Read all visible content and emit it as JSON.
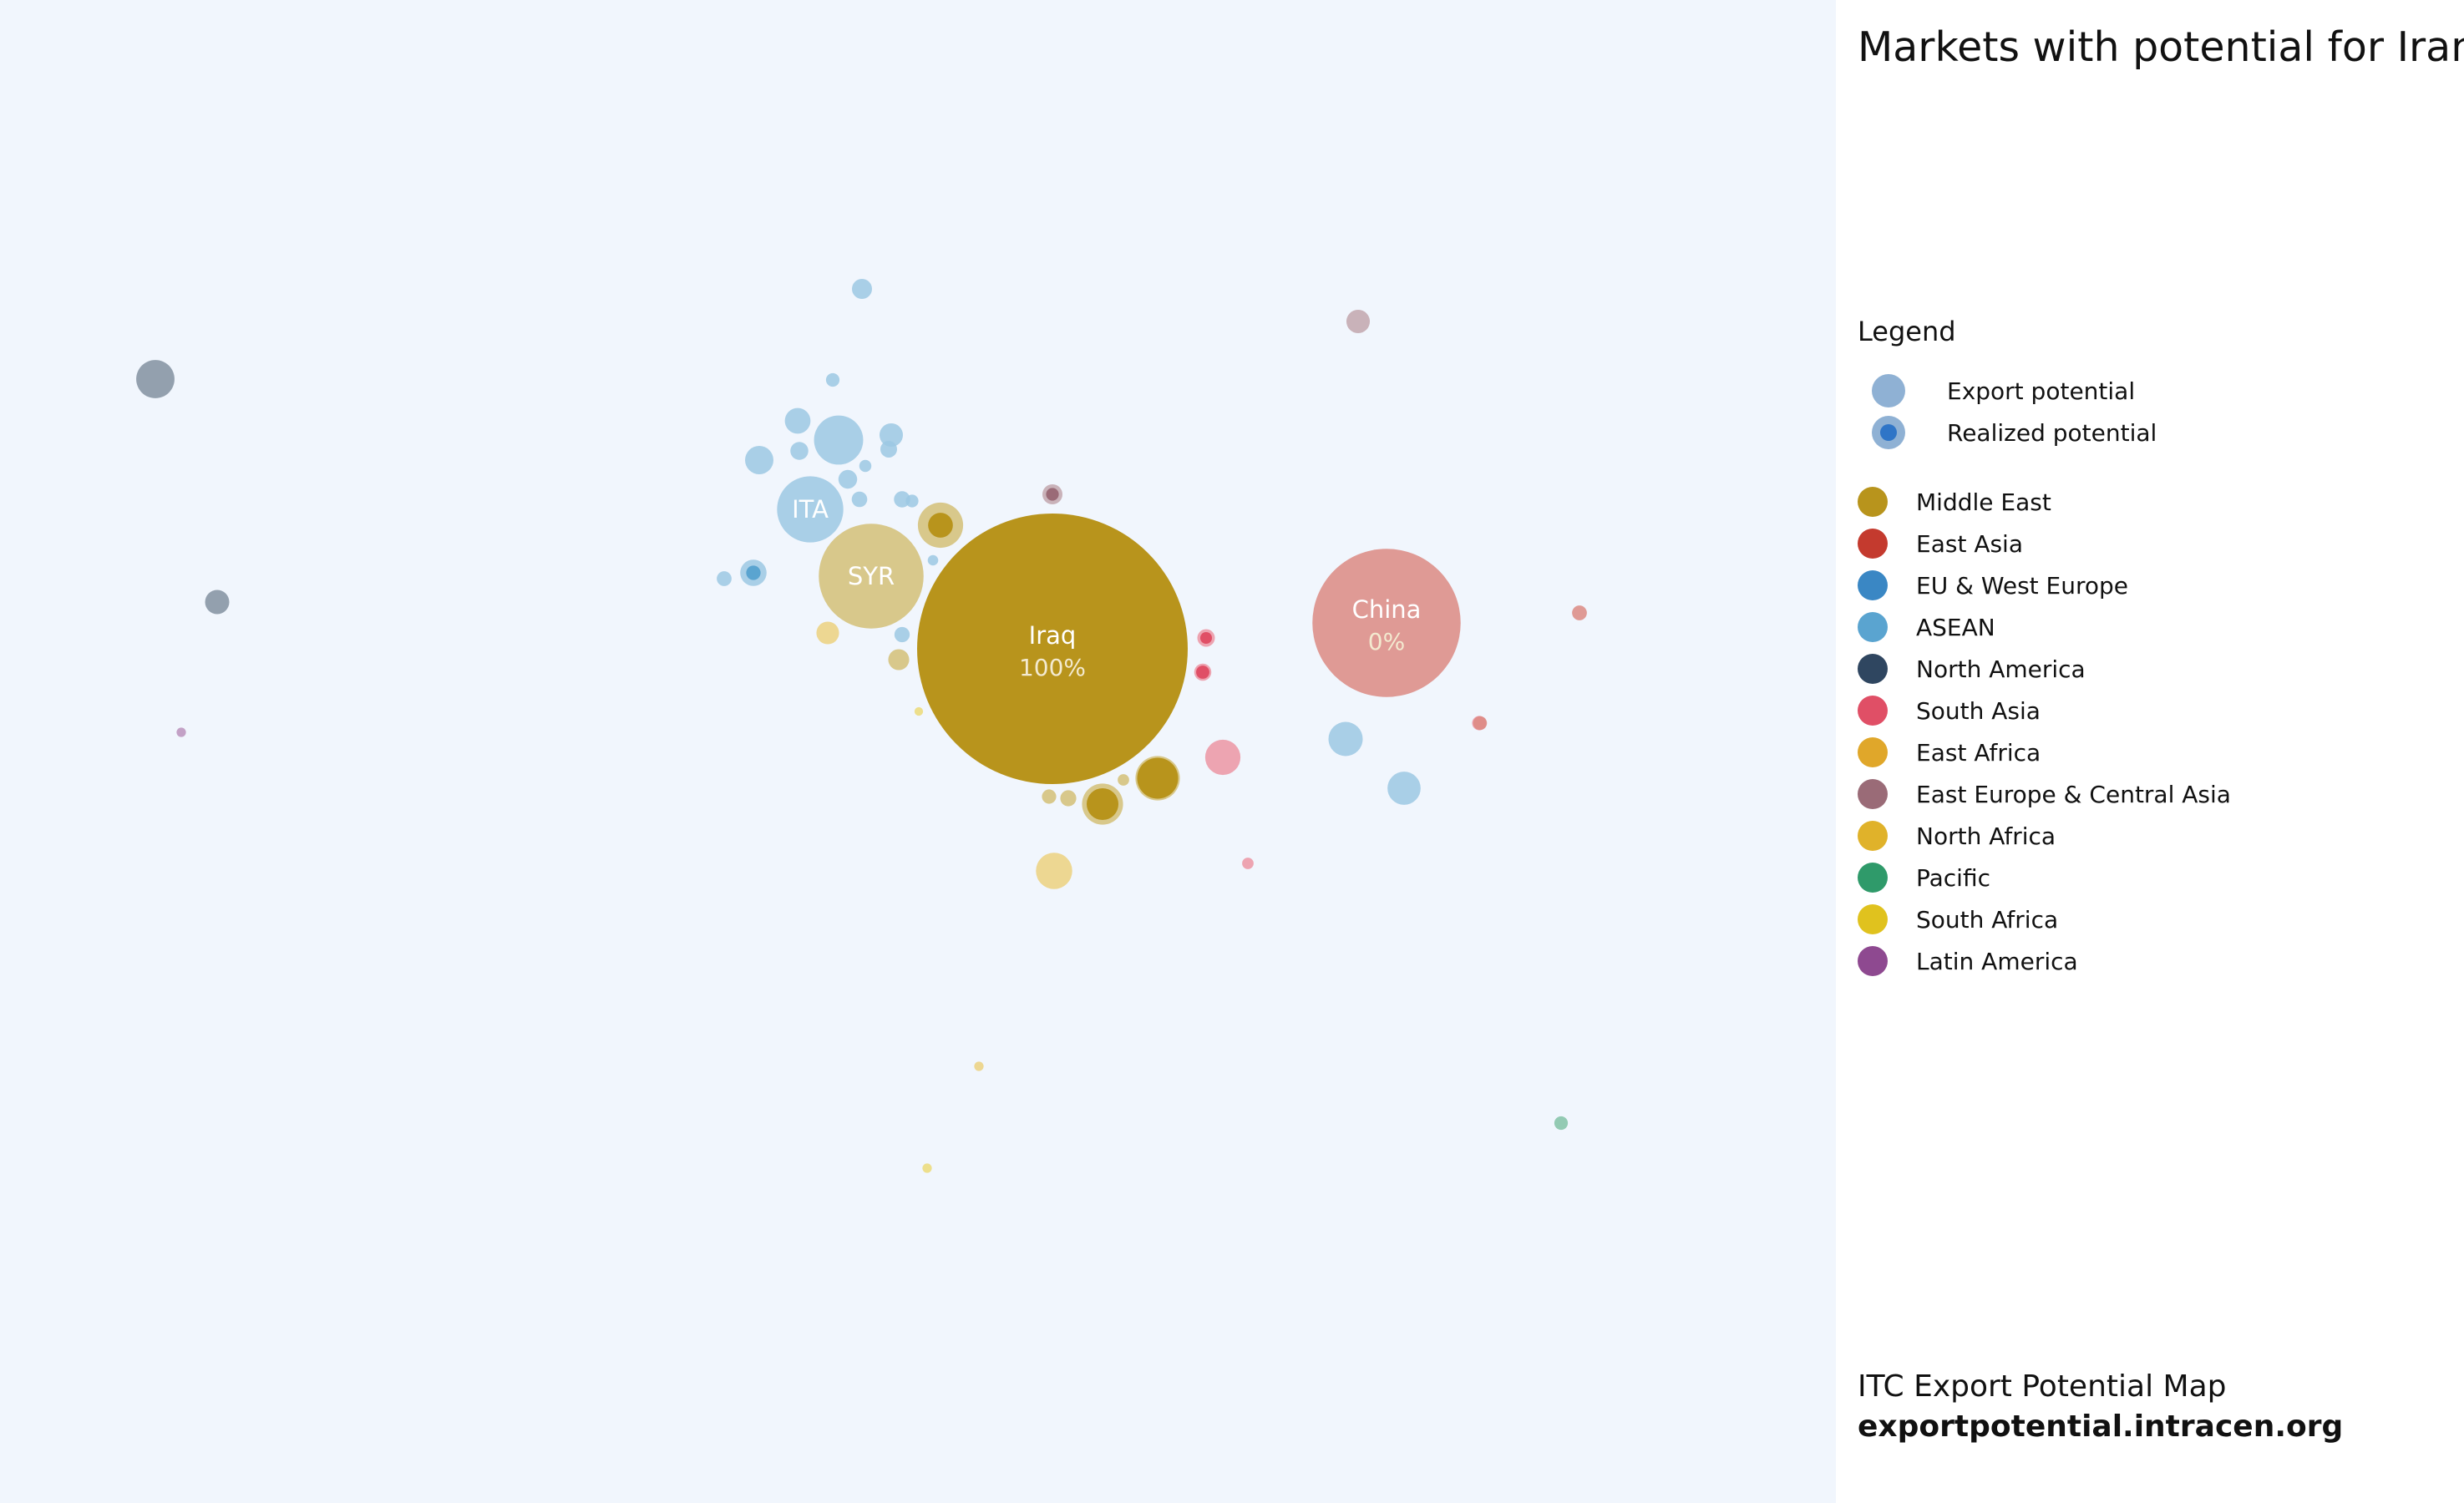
{
  "chart_data": {
    "type": "bubble",
    "title": "Markets with potential for Iran, Islamic Republic of's exports of Products of non-vegetable plaiting materials, flat-woven/bound in parallel strands",
    "bubbles": [
      {
        "region": "Middle East",
        "potential": 100,
        "realized": 1.0,
        "label": "Iraq",
        "sublabel": "100%"
      },
      {
        "region": "East Asia",
        "potential": 30,
        "realized": 0.0,
        "label": "China",
        "sublabel": "0%"
      },
      {
        "region": "Middle East",
        "potential": 15,
        "realized": 0.0,
        "label": "SYR"
      },
      {
        "region": "ASEAN",
        "potential": 6,
        "realized": 0.0,
        "label": "ITA"
      },
      {
        "region": "ASEAN",
        "potential": 3.3,
        "realized": 0.0
      },
      {
        "region": "Middle East",
        "potential": 2.8,
        "realized": 0.3
      },
      {
        "region": "Middle East",
        "potential": 2.7,
        "realized": 0.85
      },
      {
        "region": "Middle East",
        "potential": 2.3,
        "realized": 0.6
      },
      {
        "region": "North America",
        "potential": 2.0,
        "realized": 0.0
      },
      {
        "region": "North Africa",
        "potential": 1.8,
        "realized": 0.0
      },
      {
        "region": "South Asia",
        "potential": 1.7,
        "realized": 0.0
      },
      {
        "region": "ASEAN",
        "potential": 1.6,
        "realized": 0.0
      },
      {
        "region": "ASEAN",
        "potential": 1.5,
        "realized": 0.0
      },
      {
        "region": "ASEAN",
        "potential": 1.1,
        "realized": 0.0
      },
      {
        "region": "ASEAN",
        "potential": 0.9,
        "realized": 0.0
      },
      {
        "region": "ASEAN",
        "potential": 0.95,
        "realized": 0.3
      },
      {
        "region": "North America",
        "potential": 0.8,
        "realized": 0.0
      },
      {
        "region": "East Europe & Central Asia",
        "potential": 0.75,
        "realized": 0.0
      },
      {
        "region": "ASEAN",
        "potential": 0.75,
        "realized": 0.0
      },
      {
        "region": "North Africa",
        "potential": 0.7,
        "realized": 0.0
      },
      {
        "region": "Middle East",
        "potential": 0.6,
        "realized": 0.0
      },
      {
        "region": "ASEAN",
        "potential": 0.55,
        "realized": 0.0
      },
      {
        "region": "East Europe & Central Asia",
        "potential": 0.55,
        "realized": 0.4
      },
      {
        "region": "ASEAN",
        "potential": 0.48,
        "realized": 0.0
      },
      {
        "region": "ASEAN",
        "potential": 0.44,
        "realized": 0.0
      },
      {
        "region": "South Asia",
        "potential": 0.42,
        "realized": 0.45
      },
      {
        "region": "South Asia",
        "potential": 0.4,
        "realized": 0.6
      },
      {
        "region": "ASEAN",
        "potential": 0.38,
        "realized": 0.0
      },
      {
        "region": "ASEAN",
        "potential": 0.36,
        "realized": 0.0
      },
      {
        "region": "Middle East",
        "potential": 0.35,
        "realized": 0.0
      },
      {
        "region": "ASEAN",
        "potential": 0.33,
        "realized": 0.0
      },
      {
        "region": "ASEAN",
        "potential": 0.32,
        "realized": 0.0
      },
      {
        "region": "ASEAN",
        "potential": 0.3,
        "realized": 0.0
      },
      {
        "region": "East Asia",
        "potential": 0.3,
        "realized": 0.0
      },
      {
        "region": "South Asia",
        "potential": 0.28,
        "realized": 0.0
      },
      {
        "region": "Middle East",
        "potential": 0.28,
        "realized": 0.0
      },
      {
        "region": "East Asia",
        "potential": 0.26,
        "realized": 0.0
      },
      {
        "region": "ASEAN",
        "potential": 0.25,
        "realized": 0.0
      },
      {
        "region": "Pacific",
        "potential": 0.25,
        "realized": 0.0
      },
      {
        "region": "ASEAN",
        "potential": 0.22,
        "realized": 0.0
      },
      {
        "region": "ASEAN",
        "potential": 0.2,
        "realized": 0.0
      },
      {
        "region": "South Asia",
        "potential": 0.18,
        "realized": 0.0
      },
      {
        "region": "Middle East",
        "potential": 0.18,
        "realized": 0.0
      },
      {
        "region": "ASEAN",
        "potential": 0.15,
        "realized": 0.0
      },
      {
        "region": "Latin America",
        "potential": 0.12,
        "realized": 0.0
      },
      {
        "region": "North Africa",
        "potential": 0.12,
        "realized": 0.0
      },
      {
        "region": "South Africa",
        "potential": 0.12,
        "realized": 0.0
      },
      {
        "region": "South Africa",
        "potential": 0.1,
        "realized": 0.0
      }
    ]
  },
  "legend": {
    "heading": "Legend",
    "types": [
      {
        "label": "Export potential",
        "icon": "export-potential-icon"
      },
      {
        "label": "Realized potential",
        "icon": "realized-potential-icon"
      }
    ],
    "regions": [
      {
        "name": "Middle East",
        "color": "#b8941c"
      },
      {
        "name": "East Asia",
        "color": "#c43a2e"
      },
      {
        "name": "EU & West Europe",
        "color": "#3a87c4"
      },
      {
        "name": "ASEAN",
        "color": "#5aa4d0"
      },
      {
        "name": "North America",
        "color": "#2f4660"
      },
      {
        "name": "South Asia",
        "color": "#e04f66"
      },
      {
        "name": "East Africa",
        "color": "#e0a72a"
      },
      {
        "name": "East Europe & Central Asia",
        "color": "#9a6b77"
      },
      {
        "name": "North Africa",
        "color": "#e0b22a"
      },
      {
        "name": "Pacific",
        "color": "#2f9a6a"
      },
      {
        "name": "South Africa",
        "color": "#e0c21e"
      },
      {
        "name": "Latin America",
        "color": "#8e4990"
      }
    ]
  },
  "footer": {
    "line1": "ITC Export Potential Map",
    "line2": "exportpotential.intracen.org"
  },
  "colors": {
    "chart_background": "#f1f6fd",
    "panel_background": "#ffffff",
    "realized_inner": "#2f75c7"
  }
}
